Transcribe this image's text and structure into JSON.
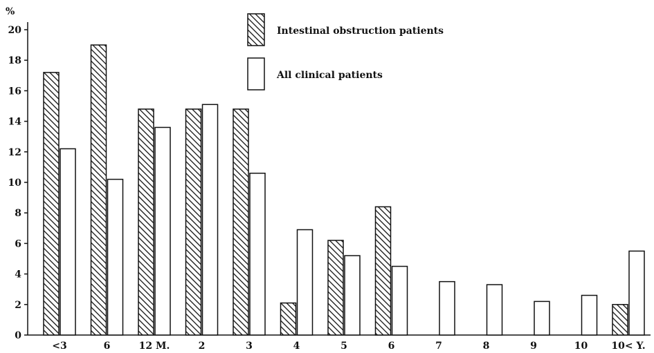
{
  "chart_data": {
    "type": "bar",
    "y_unit": "%",
    "ylim": [
      0,
      20
    ],
    "y_ticks": [
      0,
      2,
      4,
      6,
      8,
      10,
      12,
      14,
      16,
      18,
      20
    ],
    "categories": [
      "<3",
      "6",
      "12 M.",
      "2",
      "3",
      "4",
      "5",
      "6",
      "7",
      "8",
      "9",
      "10",
      "10< Y."
    ],
    "series": [
      {
        "name": "Intestinal obstruction patients",
        "pattern": "hatched",
        "values": [
          17.2,
          19.0,
          14.8,
          14.8,
          14.8,
          2.1,
          6.2,
          8.4,
          0,
          0,
          0,
          0,
          2.0
        ]
      },
      {
        "name": "All clinical patients",
        "pattern": "open",
        "values": [
          12.2,
          10.2,
          13.6,
          15.1,
          10.6,
          6.9,
          5.2,
          4.5,
          3.5,
          3.3,
          2.2,
          2.6,
          5.5
        ]
      }
    ],
    "legend": {
      "placement": "top-center"
    },
    "grid": false
  },
  "colors": {
    "ink": "#111111",
    "background": "#ffffff"
  }
}
